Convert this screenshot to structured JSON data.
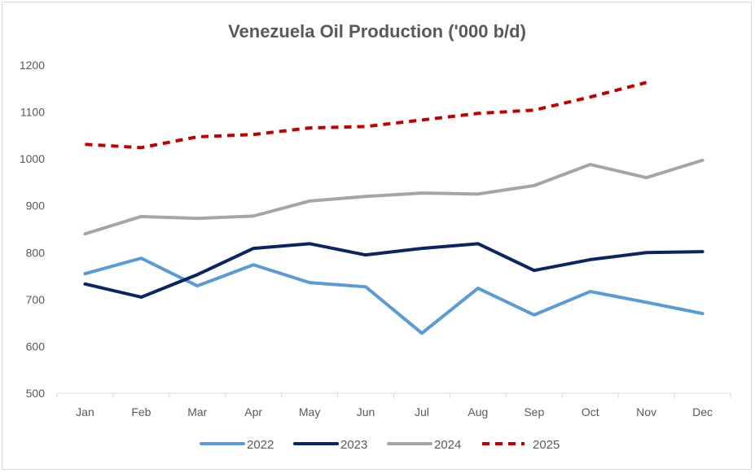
{
  "chart_data": {
    "type": "line",
    "title": "Venezuela Oil Production ('000 b/d)",
    "xlabel": "",
    "ylabel": "",
    "categories": [
      "Jan",
      "Feb",
      "Mar",
      "Apr",
      "May",
      "Jun",
      "Jul",
      "Aug",
      "Sep",
      "Oct",
      "Nov",
      "Dec"
    ],
    "ylim": [
      500,
      1200
    ],
    "yticks": [
      500,
      600,
      700,
      800,
      900,
      1000,
      1100,
      1200
    ],
    "grid": false,
    "legend_placement": "bottom",
    "series": [
      {
        "name": "2022",
        "color": "#5b9bd5",
        "dash": false,
        "values": [
          755,
          788,
          729,
          774,
          736,
          727,
          628,
          724,
          667,
          717,
          694,
          670
        ]
      },
      {
        "name": "2023",
        "color": "#0b2463",
        "dash": false,
        "values": [
          733,
          705,
          753,
          809,
          819,
          795,
          809,
          819,
          762,
          785,
          800,
          802
        ]
      },
      {
        "name": "2024",
        "color": "#a5a5a5",
        "dash": false,
        "values": [
          840,
          877,
          873,
          878,
          910,
          920,
          927,
          925,
          943,
          988,
          960,
          997
        ]
      },
      {
        "name": "2025",
        "color": "#c00000",
        "dash": true,
        "values": [
          1031,
          1024,
          1047,
          1052,
          1066,
          1069,
          1083,
          1097,
          1104,
          1132,
          1163,
          null
        ]
      }
    ]
  }
}
